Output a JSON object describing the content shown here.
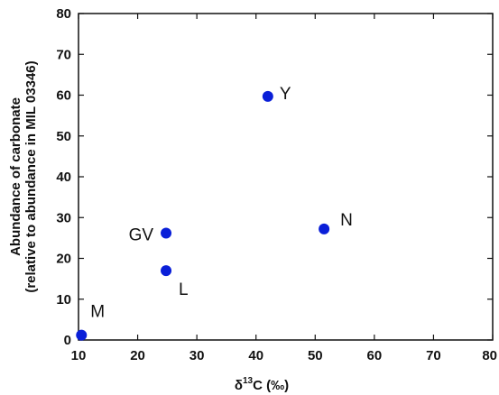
{
  "chart_data": {
    "type": "scatter",
    "xlabel": {
      "prefix": "δ",
      "sup": "13",
      "suffix": "C (‰)"
    },
    "ylabel_line1": "Abundance of carbonate",
    "ylabel_line2": "(relative to abundance in MIL 03346)",
    "xlim": [
      10,
      80
    ],
    "ylim": [
      0,
      80
    ],
    "xticks": [
      10,
      20,
      30,
      40,
      50,
      60,
      70,
      80
    ],
    "yticks": [
      0,
      10,
      20,
      30,
      40,
      50,
      60,
      70,
      80
    ],
    "grid": false,
    "point_color": "#0a1fd8",
    "points": [
      {
        "label": "M",
        "x": 10.5,
        "y": 1.2
      },
      {
        "label": "GV",
        "x": 24.8,
        "y": 26.2
      },
      {
        "label": "L",
        "x": 24.8,
        "y": 17.0
      },
      {
        "label": "Y",
        "x": 42.0,
        "y": 59.7
      },
      {
        "label": "N",
        "x": 51.5,
        "y": 27.2
      }
    ]
  }
}
